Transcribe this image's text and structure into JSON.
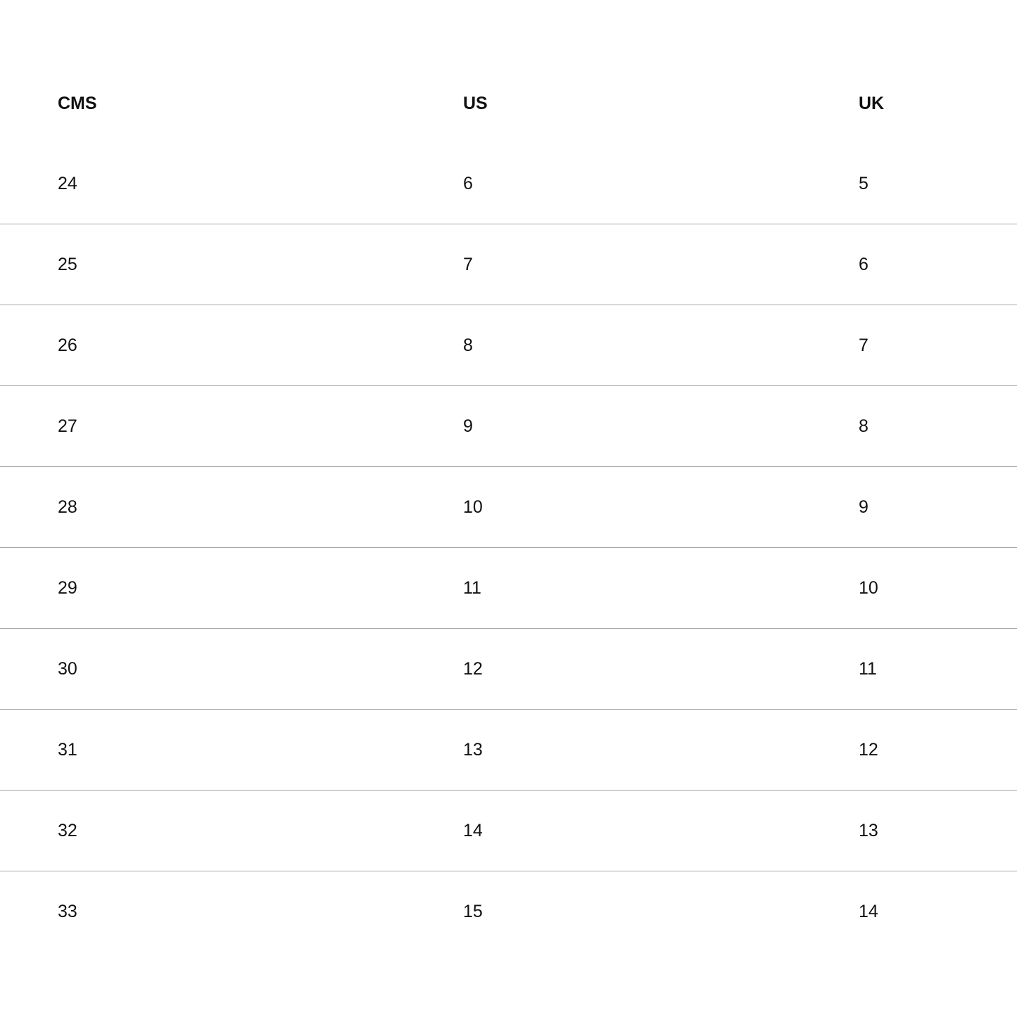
{
  "table": {
    "headers": [
      "CMS",
      "US",
      "UK"
    ],
    "rows": [
      [
        "24",
        "6",
        "5"
      ],
      [
        "25",
        "7",
        "6"
      ],
      [
        "26",
        "8",
        "7"
      ],
      [
        "27",
        "9",
        "8"
      ],
      [
        "28",
        "10",
        "9"
      ],
      [
        "29",
        "11",
        "10"
      ],
      [
        "30",
        "12",
        "11"
      ],
      [
        "31",
        "13",
        "12"
      ],
      [
        "32",
        "14",
        "13"
      ],
      [
        "33",
        "15",
        "14"
      ]
    ]
  }
}
